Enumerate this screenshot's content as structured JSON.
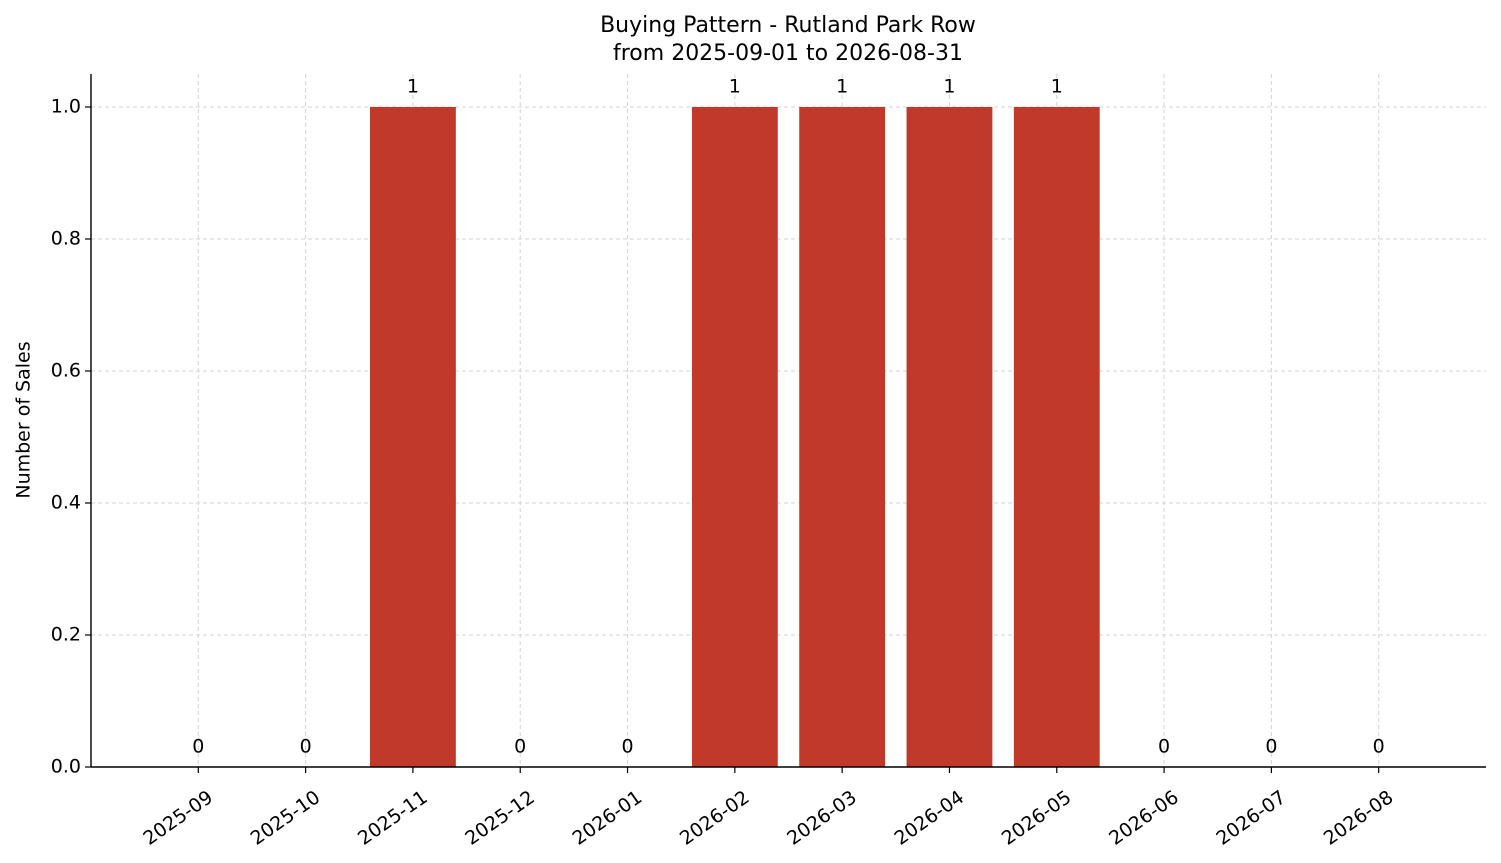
{
  "chart_data": {
    "type": "bar",
    "title": "Buying Pattern - Rutland Park Row",
    "subtitle": "from 2025-09-01 to 2026-08-31",
    "y_label": "Number of Sales",
    "categories": [
      "2025-09",
      "2025-10",
      "2025-11",
      "2025-12",
      "2026-01",
      "2026-02",
      "2026-03",
      "2026-04",
      "2026-05",
      "2026-06",
      "2026-07",
      "2026-08"
    ],
    "values": [
      0,
      0,
      1,
      0,
      0,
      1,
      1,
      1,
      1,
      0,
      0,
      0
    ],
    "color": "#c0392b",
    "ylim": [
      0,
      1.05
    ],
    "yticks": [
      {
        "value": 0,
        "label": "0.0"
      },
      0.2,
      0.4,
      0.6,
      0.8,
      {
        "value": 1,
        "label": "1.0"
      }
    ],
    "grid": true
  }
}
